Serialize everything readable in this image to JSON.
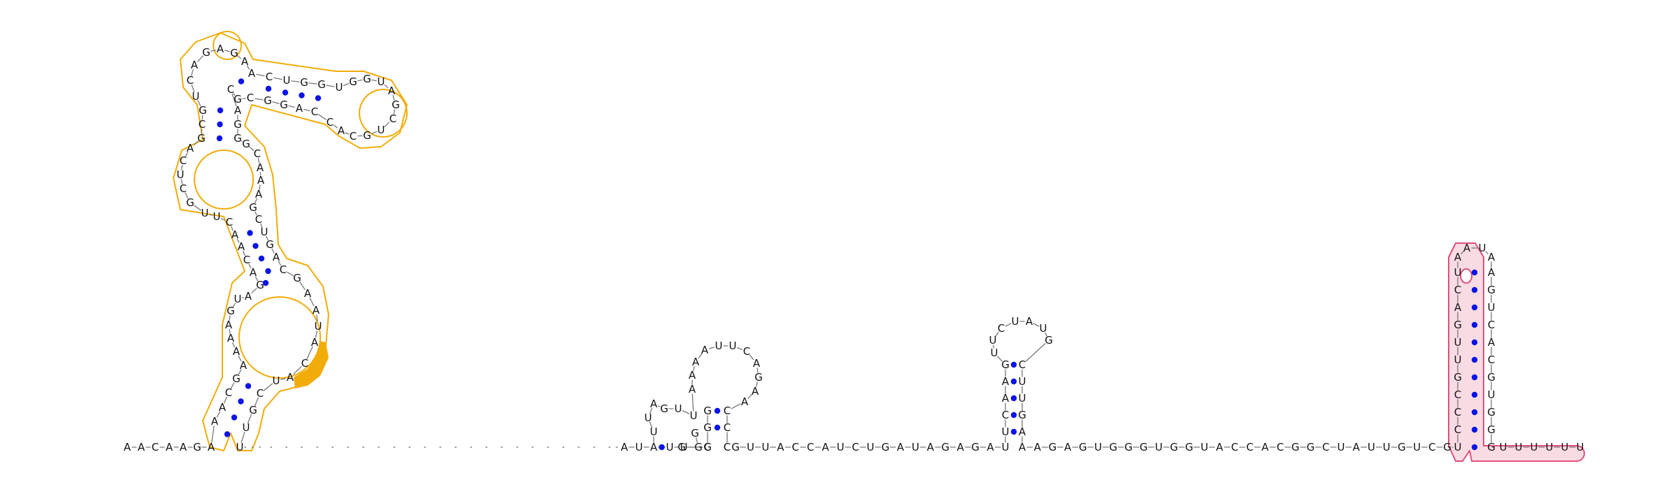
{
  "diagram": {
    "type": "rna-secondary-structure",
    "pair_color": "#0a14e6",
    "highlight_colors": {
      "domain": "#f2ac09",
      "hairpin": "#e0507a",
      "hairpin_fill": "#f9dbe3"
    }
  }
}
